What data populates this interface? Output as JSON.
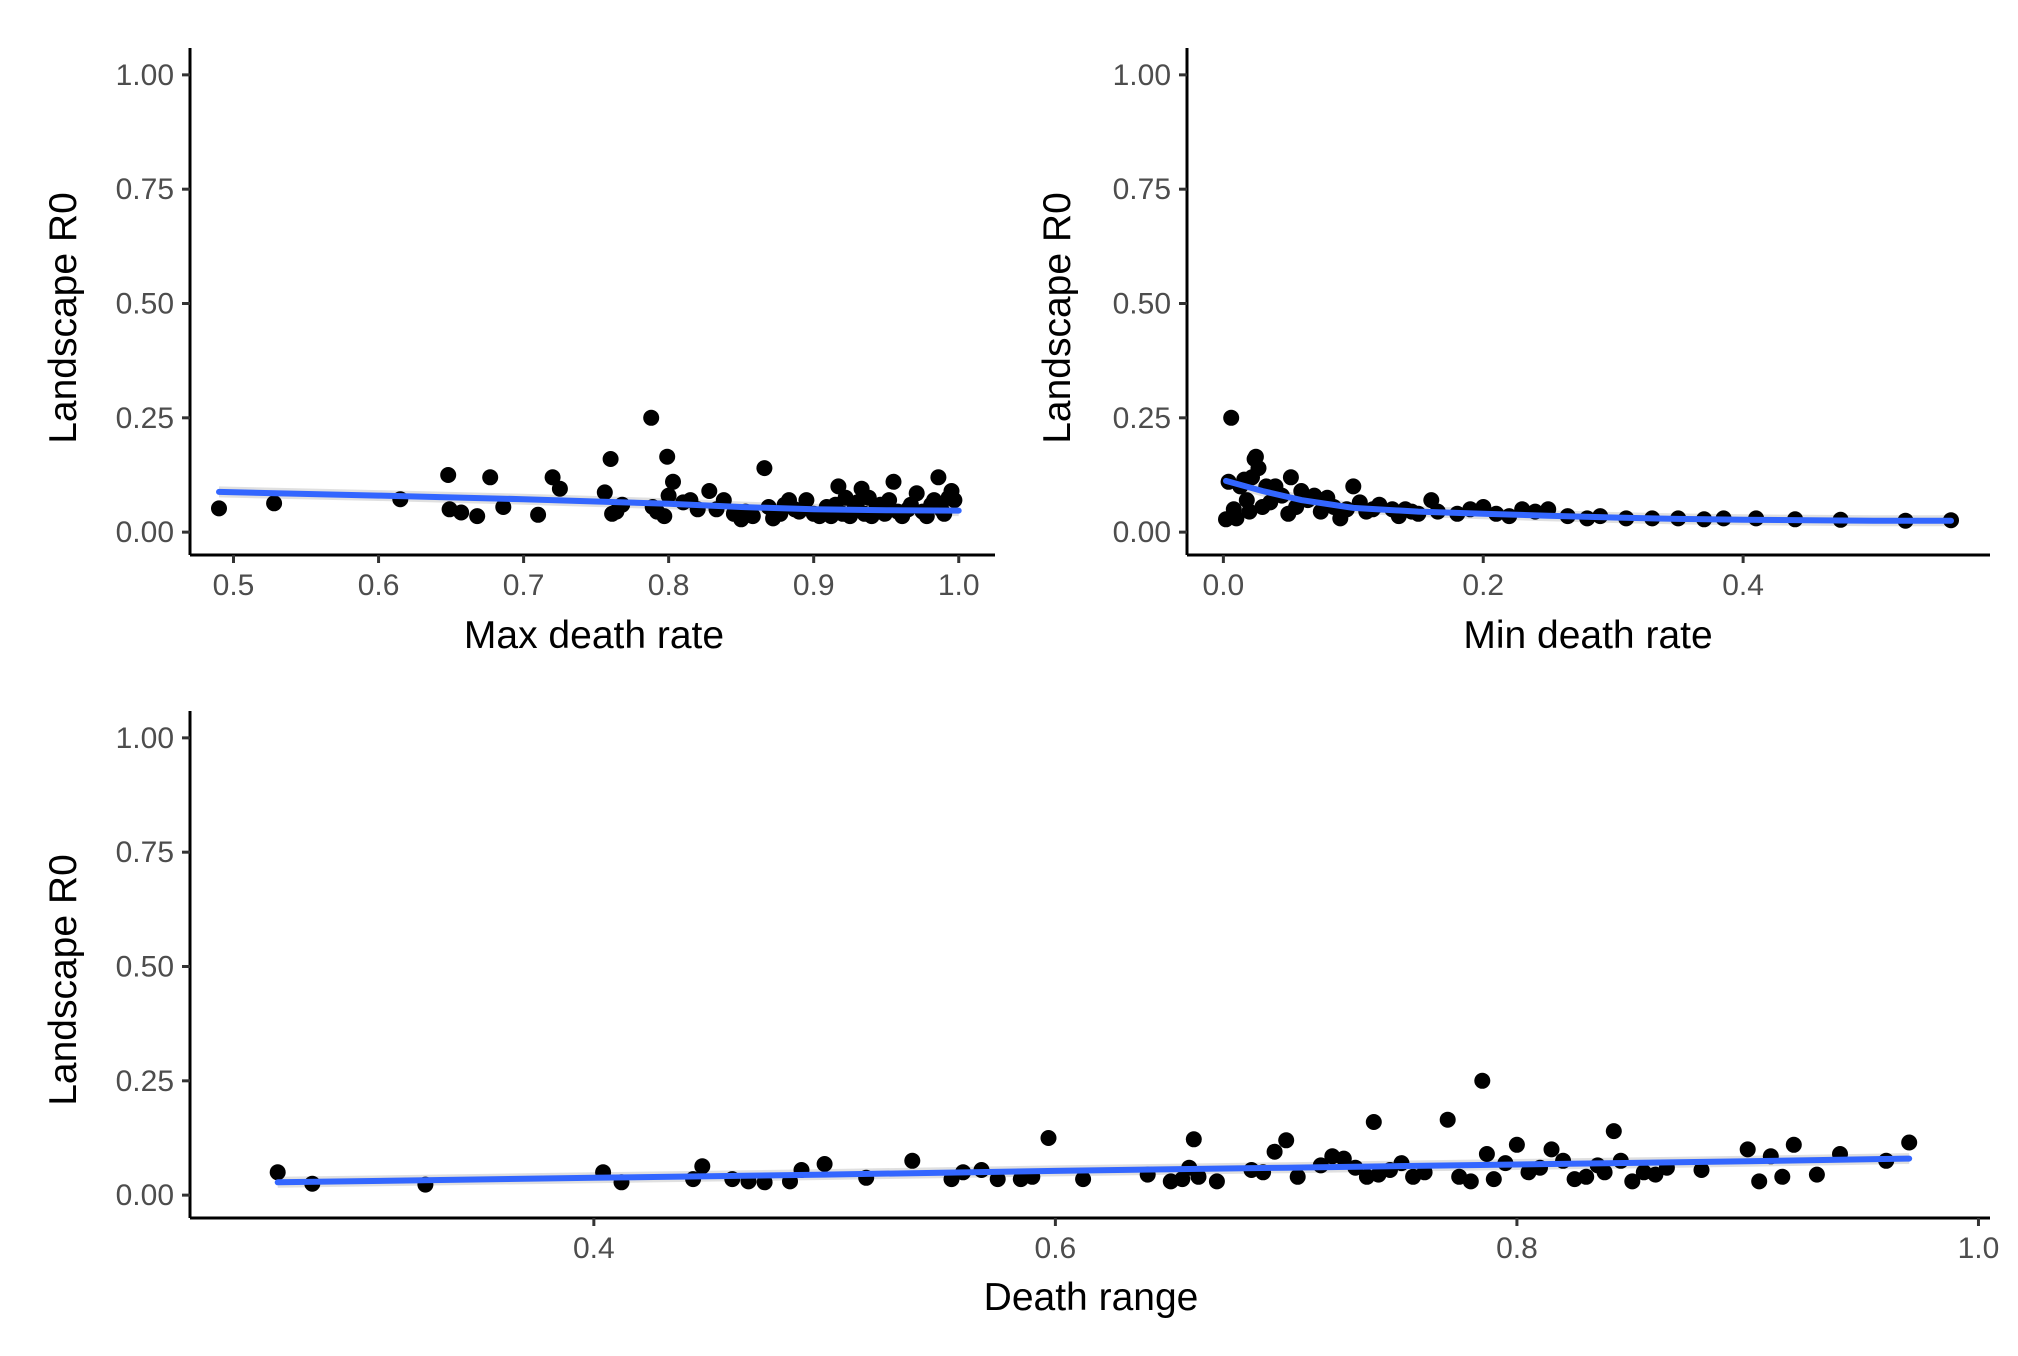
{
  "chart_data": [
    {
      "type": "scatter",
      "xlabel": "Max death rate",
      "ylabel": "Landscape R0",
      "xlim": [
        0.47,
        1.025
      ],
      "ylim": [
        -0.05,
        1.05
      ],
      "xticks": [
        0.5,
        0.6,
        0.7,
        0.8,
        0.9,
        1.0
      ],
      "xtick_labels": [
        "0.5",
        "0.6",
        "0.7",
        "0.8",
        "0.9",
        "1.0"
      ],
      "yticks": [
        0.0,
        0.25,
        0.5,
        0.75,
        1.0
      ],
      "ytick_labels": [
        "0.00",
        "0.25",
        "0.50",
        "0.75",
        "1.00"
      ],
      "grid": false,
      "x": [
        0.49,
        0.528,
        0.615,
        0.648,
        0.649,
        0.657,
        0.668,
        0.677,
        0.686,
        0.71,
        0.72,
        0.725,
        0.756,
        0.76,
        0.761,
        0.764,
        0.768,
        0.788,
        0.789,
        0.792,
        0.797,
        0.799,
        0.8,
        0.803,
        0.81,
        0.815,
        0.82,
        0.828,
        0.833,
        0.838,
        0.845,
        0.85,
        0.853,
        0.858,
        0.866,
        0.869,
        0.872,
        0.877,
        0.88,
        0.883,
        0.887,
        0.89,
        0.895,
        0.9,
        0.904,
        0.909,
        0.912,
        0.915,
        0.917,
        0.92,
        0.922,
        0.925,
        0.928,
        0.93,
        0.933,
        0.935,
        0.938,
        0.94,
        0.943,
        0.946,
        0.949,
        0.952,
        0.955,
        0.958,
        0.961,
        0.965,
        0.967,
        0.971,
        0.975,
        0.978,
        0.981,
        0.983,
        0.986,
        0.988,
        0.99,
        0.993,
        0.995,
        0.997
      ],
      "y": [
        0.052,
        0.063,
        0.072,
        0.125,
        0.05,
        0.043,
        0.035,
        0.12,
        0.055,
        0.038,
        0.12,
        0.095,
        0.087,
        0.16,
        0.04,
        0.045,
        0.06,
        0.25,
        0.055,
        0.045,
        0.035,
        0.165,
        0.08,
        0.11,
        0.065,
        0.07,
        0.05,
        0.09,
        0.05,
        0.07,
        0.04,
        0.028,
        0.045,
        0.035,
        0.14,
        0.055,
        0.03,
        0.04,
        0.06,
        0.07,
        0.05,
        0.045,
        0.07,
        0.04,
        0.035,
        0.055,
        0.035,
        0.06,
        0.1,
        0.04,
        0.075,
        0.035,
        0.05,
        0.065,
        0.095,
        0.04,
        0.075,
        0.035,
        0.05,
        0.06,
        0.04,
        0.07,
        0.11,
        0.045,
        0.035,
        0.05,
        0.06,
        0.085,
        0.045,
        0.035,
        0.06,
        0.07,
        0.12,
        0.05,
        0.04,
        0.075,
        0.09,
        0.07
      ],
      "trend": {
        "x": [
          0.49,
          0.6,
          0.7,
          0.8,
          0.85,
          0.9,
          0.95,
          1.0
        ],
        "y": [
          0.088,
          0.08,
          0.072,
          0.062,
          0.055,
          0.05,
          0.048,
          0.047
        ]
      },
      "point_color": "#000000",
      "line_color": "#3366FF",
      "band_color": "#cccccc"
    },
    {
      "type": "scatter",
      "xlabel": "Min death rate",
      "ylabel": "Landscape R0",
      "xlim": [
        -0.028,
        0.59
      ],
      "ylim": [
        -0.05,
        1.05
      ],
      "xticks": [
        0.0,
        0.2,
        0.4
      ],
      "xtick_labels": [
        "0.0",
        "0.2",
        "0.4"
      ],
      "yticks": [
        0.0,
        0.25,
        0.5,
        0.75,
        1.0
      ],
      "ytick_labels": [
        "0.00",
        "0.25",
        "0.50",
        "0.75",
        "1.00"
      ],
      "grid": false,
      "x": [
        0.002,
        0.004,
        0.006,
        0.008,
        0.01,
        0.013,
        0.016,
        0.018,
        0.02,
        0.022,
        0.024,
        0.025,
        0.027,
        0.03,
        0.033,
        0.036,
        0.04,
        0.045,
        0.05,
        0.052,
        0.056,
        0.06,
        0.065,
        0.07,
        0.075,
        0.08,
        0.085,
        0.09,
        0.095,
        0.1,
        0.105,
        0.11,
        0.115,
        0.12,
        0.13,
        0.135,
        0.14,
        0.145,
        0.15,
        0.16,
        0.165,
        0.18,
        0.19,
        0.2,
        0.21,
        0.22,
        0.23,
        0.24,
        0.25,
        0.265,
        0.28,
        0.29,
        0.31,
        0.33,
        0.35,
        0.37,
        0.385,
        0.41,
        0.44,
        0.475,
        0.525,
        0.56
      ],
      "y": [
        0.028,
        0.11,
        0.25,
        0.05,
        0.03,
        0.1,
        0.115,
        0.07,
        0.045,
        0.12,
        0.16,
        0.165,
        0.14,
        0.055,
        0.1,
        0.065,
        0.1,
        0.08,
        0.04,
        0.12,
        0.055,
        0.09,
        0.07,
        0.08,
        0.045,
        0.075,
        0.055,
        0.03,
        0.05,
        0.1,
        0.065,
        0.045,
        0.05,
        0.06,
        0.05,
        0.035,
        0.05,
        0.045,
        0.04,
        0.07,
        0.045,
        0.04,
        0.05,
        0.055,
        0.04,
        0.035,
        0.05,
        0.045,
        0.05,
        0.035,
        0.03,
        0.035,
        0.03,
        0.03,
        0.03,
        0.028,
        0.03,
        0.03,
        0.028,
        0.027,
        0.025,
        0.026
      ],
      "trend": {
        "x": [
          0.002,
          0.03,
          0.06,
          0.1,
          0.15,
          0.2,
          0.25,
          0.3,
          0.35,
          0.4,
          0.45,
          0.5,
          0.56
        ],
        "y": [
          0.112,
          0.09,
          0.07,
          0.053,
          0.045,
          0.04,
          0.036,
          0.032,
          0.029,
          0.027,
          0.026,
          0.025,
          0.025
        ]
      },
      "point_color": "#000000",
      "line_color": "#3366FF",
      "band_color": "#cccccc"
    },
    {
      "type": "scatter",
      "xlabel": "Death range",
      "ylabel": "Landscape R0",
      "xlim": [
        0.225,
        1.005
      ],
      "ylim": [
        -0.05,
        1.05
      ],
      "xticks": [
        0.4,
        0.6,
        0.8,
        1.0
      ],
      "xtick_labels": [
        "0.4",
        "0.6",
        "0.8",
        "1.0"
      ],
      "yticks": [
        0.0,
        0.25,
        0.5,
        0.75,
        1.0
      ],
      "ytick_labels": [
        "0.00",
        "0.25",
        "0.50",
        "0.75",
        "1.00"
      ],
      "grid": false,
      "x": [
        0.263,
        0.278,
        0.327,
        0.404,
        0.412,
        0.443,
        0.447,
        0.46,
        0.467,
        0.474,
        0.485,
        0.49,
        0.5,
        0.518,
        0.538,
        0.555,
        0.56,
        0.568,
        0.575,
        0.585,
        0.59,
        0.597,
        0.612,
        0.64,
        0.65,
        0.655,
        0.658,
        0.66,
        0.662,
        0.67,
        0.685,
        0.69,
        0.695,
        0.7,
        0.705,
        0.715,
        0.72,
        0.725,
        0.73,
        0.735,
        0.738,
        0.74,
        0.745,
        0.75,
        0.755,
        0.76,
        0.77,
        0.775,
        0.78,
        0.785,
        0.787,
        0.79,
        0.795,
        0.8,
        0.805,
        0.81,
        0.815,
        0.82,
        0.825,
        0.83,
        0.835,
        0.838,
        0.842,
        0.845,
        0.85,
        0.855,
        0.86,
        0.865,
        0.88,
        0.9,
        0.905,
        0.91,
        0.915,
        0.92,
        0.93,
        0.94,
        0.96,
        0.97
      ],
      "y": [
        0.05,
        0.025,
        0.023,
        0.05,
        0.028,
        0.035,
        0.063,
        0.035,
        0.03,
        0.028,
        0.03,
        0.055,
        0.068,
        0.038,
        0.075,
        0.035,
        0.05,
        0.055,
        0.035,
        0.035,
        0.04,
        0.125,
        0.035,
        0.045,
        0.03,
        0.035,
        0.06,
        0.122,
        0.04,
        0.03,
        0.055,
        0.05,
        0.095,
        0.12,
        0.04,
        0.065,
        0.085,
        0.08,
        0.06,
        0.04,
        0.16,
        0.045,
        0.055,
        0.07,
        0.04,
        0.05,
        0.165,
        0.04,
        0.03,
        0.25,
        0.09,
        0.035,
        0.07,
        0.11,
        0.05,
        0.06,
        0.1,
        0.075,
        0.035,
        0.04,
        0.065,
        0.05,
        0.14,
        0.075,
        0.03,
        0.05,
        0.045,
        0.06,
        0.055,
        0.1,
        0.03,
        0.085,
        0.04,
        0.11,
        0.045,
        0.09,
        0.075,
        0.115
      ],
      "trend": {
        "x": [
          0.263,
          0.4,
          0.5,
          0.6,
          0.7,
          0.8,
          0.9,
          0.97
        ],
        "y": [
          0.028,
          0.038,
          0.045,
          0.053,
          0.06,
          0.067,
          0.074,
          0.08
        ]
      },
      "point_color": "#000000",
      "line_color": "#3366FF",
      "band_color": "#cccccc"
    }
  ]
}
